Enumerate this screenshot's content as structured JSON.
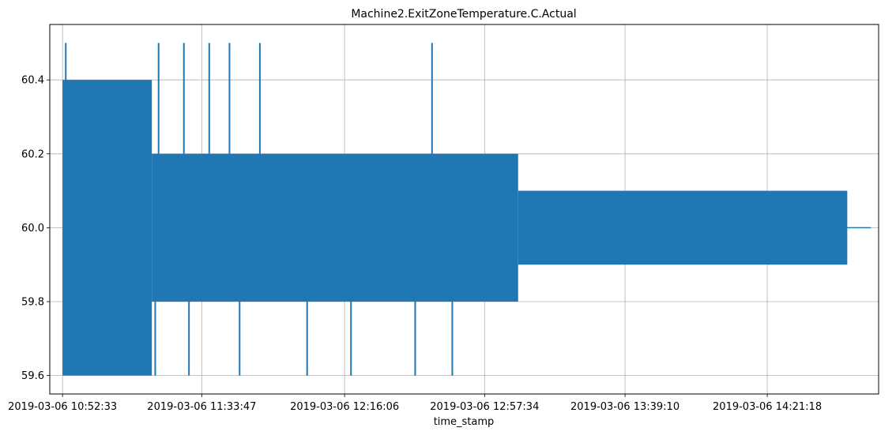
{
  "chart_data": {
    "type": "line",
    "title": "Machine2.ExitZoneTemperature.C.Actual",
    "xlabel": "time_stamp",
    "ylabel": "",
    "xlim": [
      "2019-03-06 10:48:46",
      "2019-03-06 14:54:17"
    ],
    "ylim": [
      59.55,
      60.55
    ],
    "x_tick_labels": [
      "2019-03-06 10:52:33",
      "2019-03-06 11:33:47",
      "2019-03-06 12:16:06",
      "2019-03-06 12:57:34",
      "2019-03-06 13:39:10",
      "2019-03-06 14:21:18"
    ],
    "y_ticks": [
      59.6,
      59.8,
      60.0,
      60.2,
      60.4
    ],
    "y_tick_labels": [
      "59.6",
      "59.8",
      "60.0",
      "60.2",
      "60.4"
    ],
    "grid": true,
    "series": [
      {
        "color": "#1f77b4",
        "segments": [
          {
            "x_start": "2019-03-06 10:52:33",
            "x_end": "2019-03-06 11:19:00",
            "min": 59.6,
            "max": 60.4
          },
          {
            "x_start": "2019-03-06 11:19:00",
            "x_end": "2019-03-06 13:07:30",
            "min": 59.8,
            "max": 60.2
          },
          {
            "x_start": "2019-03-06 13:07:30",
            "x_end": "2019-03-06 14:45:00",
            "min": 59.9,
            "max": 60.1
          },
          {
            "x_start": "2019-03-06 14:45:00",
            "x_end": "2019-03-06 14:52:00",
            "min": 60.0,
            "max": 60.0
          }
        ],
        "peaks": [
          {
            "x": "2019-03-06 10:53:30",
            "y": 60.5
          },
          {
            "x": "2019-03-06 11:21:00",
            "y": 60.5
          },
          {
            "x": "2019-03-06 11:28:30",
            "y": 60.5
          },
          {
            "x": "2019-03-06 11:36:00",
            "y": 60.5
          },
          {
            "x": "2019-03-06 11:42:00",
            "y": 60.5
          },
          {
            "x": "2019-03-06 11:51:00",
            "y": 60.5
          },
          {
            "x": "2019-03-06 12:42:00",
            "y": 60.5
          }
        ],
        "troughs": [
          {
            "x": "2019-03-06 11:20:00",
            "y": 59.6
          },
          {
            "x": "2019-03-06 11:30:00",
            "y": 59.6
          },
          {
            "x": "2019-03-06 11:45:00",
            "y": 59.6
          },
          {
            "x": "2019-03-06 12:05:00",
            "y": 59.6
          },
          {
            "x": "2019-03-06 12:18:00",
            "y": 59.6
          },
          {
            "x": "2019-03-06 12:37:00",
            "y": 59.6
          },
          {
            "x": "2019-03-06 12:48:00",
            "y": 59.6
          }
        ]
      }
    ]
  }
}
